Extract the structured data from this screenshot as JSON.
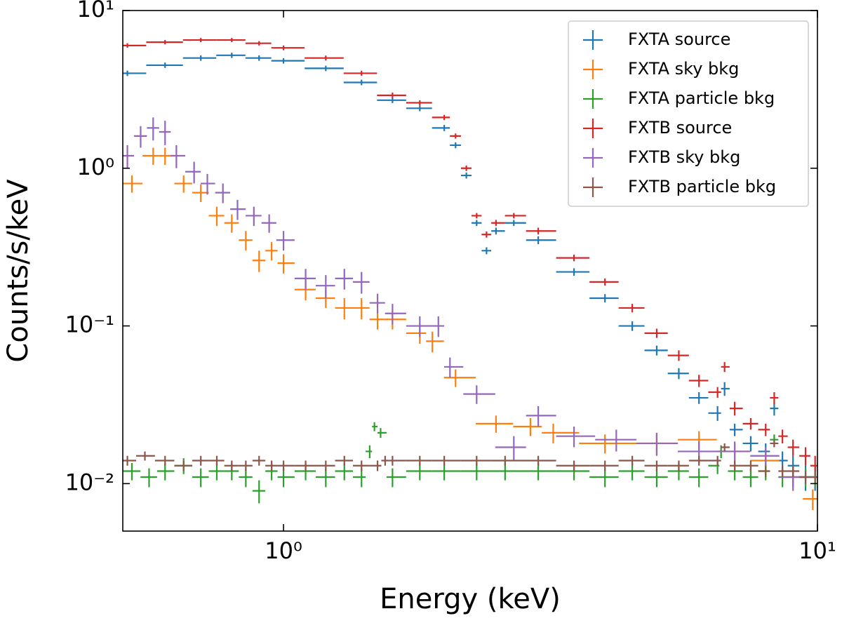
{
  "chart_data": {
    "type": "errorbar",
    "xlabel": "Energy (keV)",
    "ylabel": "Counts/s/keV",
    "xscale": "log",
    "yscale": "log",
    "xlim": [
      0.5,
      10
    ],
    "ylim": [
      0.005,
      10
    ],
    "xticks": [
      {
        "value": 1,
        "label": "10⁰"
      },
      {
        "value": 10,
        "label": "10¹"
      }
    ],
    "yticks": [
      {
        "value": 0.01,
        "label": "10⁻²"
      },
      {
        "value": 0.1,
        "label": "10⁻¹"
      },
      {
        "value": 1,
        "label": "10⁰"
      },
      {
        "value": 10,
        "label": "10¹"
      }
    ],
    "legend": "upper right",
    "series": [
      {
        "name": "FXTA source",
        "color": "#1f77b4",
        "x": [
          0.51,
          0.6,
          0.7,
          0.8,
          0.9,
          1.0,
          1.2,
          1.4,
          1.6,
          1.8,
          2.0,
          2.1,
          2.2,
          2.3,
          2.4,
          2.5,
          2.7,
          3.0,
          3.5,
          4.0,
          4.5,
          5.0,
          5.5,
          6.0,
          6.5,
          6.7,
          7.0,
          7.5,
          8.0,
          8.3,
          8.6,
          9.0,
          9.5,
          9.9
        ],
        "values": [
          4.0,
          4.5,
          5.0,
          5.2,
          5.0,
          4.8,
          4.3,
          3.5,
          2.7,
          2.4,
          1.8,
          1.4,
          0.9,
          0.45,
          0.3,
          0.4,
          0.45,
          0.35,
          0.22,
          0.15,
          0.1,
          0.07,
          0.05,
          0.035,
          0.028,
          0.04,
          0.022,
          0.018,
          0.016,
          0.03,
          0.014,
          0.013,
          0.011,
          0.011
        ],
        "errors": [
          0.16,
          0.18,
          0.2,
          0.2,
          0.2,
          0.19,
          0.17,
          0.14,
          0.11,
          0.1,
          0.08,
          0.06,
          0.04,
          0.02,
          0.015,
          0.02,
          0.02,
          0.02,
          0.012,
          0.009,
          0.007,
          0.005,
          0.004,
          0.003,
          0.003,
          0.004,
          0.002,
          0.002,
          0.002,
          0.003,
          0.002,
          0.002,
          0.002,
          0.002
        ]
      },
      {
        "name": "FXTA sky bkg",
        "color": "#ff7f0e",
        "x": [
          0.52,
          0.57,
          0.6,
          0.65,
          0.7,
          0.75,
          0.8,
          0.85,
          0.9,
          0.95,
          1.0,
          1.1,
          1.2,
          1.3,
          1.4,
          1.5,
          1.6,
          1.8,
          1.9,
          2.1,
          2.5,
          2.9,
          3.2,
          4.0,
          5.0,
          6.0,
          7.0,
          8.0,
          9.0,
          9.8
        ],
        "values": [
          0.8,
          1.2,
          1.2,
          0.8,
          0.7,
          0.5,
          0.45,
          0.35,
          0.26,
          0.3,
          0.25,
          0.17,
          0.15,
          0.13,
          0.13,
          0.11,
          0.11,
          0.09,
          0.08,
          0.047,
          0.024,
          0.023,
          0.021,
          0.018,
          0.018,
          0.019,
          0.016,
          0.014,
          0.011,
          0.008
        ],
        "errors": [
          0.1,
          0.15,
          0.15,
          0.1,
          0.09,
          0.07,
          0.06,
          0.05,
          0.04,
          0.04,
          0.035,
          0.025,
          0.02,
          0.02,
          0.02,
          0.015,
          0.015,
          0.013,
          0.012,
          0.006,
          0.003,
          0.003,
          0.003,
          0.0025,
          0.0025,
          0.0025,
          0.002,
          0.002,
          0.0015,
          0.0012
        ]
      },
      {
        "name": "FXTA particle bkg",
        "color": "#2ca02c",
        "x": [
          0.52,
          0.56,
          0.6,
          0.65,
          0.7,
          0.75,
          0.8,
          0.85,
          0.9,
          0.95,
          1.0,
          1.1,
          1.2,
          1.3,
          1.4,
          1.45,
          1.48,
          1.52,
          1.6,
          1.8,
          2.0,
          2.3,
          2.6,
          3.0,
          3.5,
          4.0,
          4.5,
          5.0,
          5.5,
          6.0,
          6.5,
          6.6,
          7.0,
          7.5,
          8.0,
          8.3,
          8.6,
          9.0,
          9.5,
          9.9
        ],
        "values": [
          0.012,
          0.011,
          0.012,
          0.013,
          0.011,
          0.012,
          0.012,
          0.011,
          0.009,
          0.012,
          0.011,
          0.012,
          0.011,
          0.012,
          0.011,
          0.016,
          0.023,
          0.021,
          0.011,
          0.012,
          0.012,
          0.012,
          0.012,
          0.012,
          0.012,
          0.011,
          0.012,
          0.011,
          0.012,
          0.011,
          0.013,
          0.016,
          0.012,
          0.011,
          0.012,
          0.019,
          0.011,
          0.011,
          0.011,
          0.011
        ],
        "errors": [
          0.0015,
          0.0015,
          0.0015,
          0.0015,
          0.0015,
          0.0015,
          0.0015,
          0.0015,
          0.0015,
          0.0015,
          0.0015,
          0.0015,
          0.0015,
          0.0015,
          0.0015,
          0.0015,
          0.0015,
          0.0015,
          0.0015,
          0.0015,
          0.0015,
          0.0015,
          0.0015,
          0.0015,
          0.0015,
          0.0015,
          0.0015,
          0.0015,
          0.0015,
          0.0015,
          0.0015,
          0.0015,
          0.0015,
          0.0015,
          0.0015,
          0.0015,
          0.0015,
          0.0015,
          0.0015,
          0.0015
        ]
      },
      {
        "name": "FXTB source",
        "color": "#d62728",
        "x": [
          0.51,
          0.6,
          0.7,
          0.8,
          0.9,
          1.0,
          1.2,
          1.4,
          1.6,
          1.8,
          2.0,
          2.1,
          2.2,
          2.3,
          2.4,
          2.5,
          2.7,
          3.0,
          3.5,
          4.0,
          4.5,
          5.0,
          5.5,
          6.0,
          6.5,
          6.7,
          7.0,
          7.5,
          8.0,
          8.3,
          8.6,
          9.0,
          9.5,
          9.9
        ],
        "values": [
          6.0,
          6.3,
          6.5,
          6.5,
          6.2,
          5.8,
          5.0,
          4.0,
          2.9,
          2.6,
          2.1,
          1.6,
          1.0,
          0.5,
          0.38,
          0.45,
          0.5,
          0.4,
          0.27,
          0.19,
          0.13,
          0.09,
          0.065,
          0.045,
          0.038,
          0.055,
          0.03,
          0.024,
          0.022,
          0.035,
          0.02,
          0.017,
          0.015,
          0.013
        ],
        "errors": [
          0.2,
          0.2,
          0.2,
          0.2,
          0.2,
          0.2,
          0.18,
          0.15,
          0.12,
          0.1,
          0.08,
          0.06,
          0.04,
          0.02,
          0.017,
          0.02,
          0.02,
          0.02,
          0.013,
          0.01,
          0.008,
          0.006,
          0.005,
          0.004,
          0.003,
          0.004,
          0.003,
          0.002,
          0.002,
          0.003,
          0.002,
          0.002,
          0.002,
          0.002
        ]
      },
      {
        "name": "FXTB sky bkg",
        "color": "#9467bd",
        "x": [
          0.51,
          0.54,
          0.57,
          0.6,
          0.63,
          0.68,
          0.72,
          0.77,
          0.82,
          0.88,
          0.94,
          1.0,
          1.1,
          1.2,
          1.3,
          1.4,
          1.5,
          1.6,
          1.8,
          1.95,
          2.05,
          2.3,
          2.7,
          3.0,
          3.5,
          4.2,
          5.0,
          6.0,
          7.0,
          8.0,
          9.0
        ],
        "values": [
          1.2,
          1.6,
          1.8,
          1.7,
          1.2,
          0.95,
          0.8,
          0.7,
          0.55,
          0.5,
          0.45,
          0.35,
          0.2,
          0.18,
          0.2,
          0.19,
          0.14,
          0.12,
          0.1,
          0.1,
          0.055,
          0.037,
          0.017,
          0.027,
          0.02,
          0.019,
          0.018,
          0.016,
          0.016,
          0.015,
          0.011
        ],
        "errors": [
          0.2,
          0.25,
          0.3,
          0.3,
          0.2,
          0.15,
          0.12,
          0.1,
          0.08,
          0.07,
          0.06,
          0.05,
          0.03,
          0.03,
          0.03,
          0.03,
          0.02,
          0.018,
          0.015,
          0.015,
          0.008,
          0.005,
          0.003,
          0.004,
          0.003,
          0.003,
          0.003,
          0.0025,
          0.0025,
          0.002,
          0.002
        ]
      },
      {
        "name": "FXTB particle bkg",
        "color": "#8c564b",
        "x": [
          0.51,
          0.55,
          0.6,
          0.65,
          0.7,
          0.75,
          0.8,
          0.85,
          0.9,
          0.95,
          1.0,
          1.1,
          1.2,
          1.3,
          1.4,
          1.5,
          1.55,
          1.6,
          1.8,
          2.0,
          2.3,
          2.6,
          3.0,
          3.5,
          4.0,
          4.5,
          5.0,
          5.5,
          6.0,
          6.5,
          6.7,
          7.0,
          7.5,
          8.0,
          8.3,
          8.6,
          9.0,
          9.5,
          9.9
        ],
        "values": [
          0.014,
          0.015,
          0.014,
          0.013,
          0.014,
          0.014,
          0.013,
          0.013,
          0.014,
          0.013,
          0.013,
          0.013,
          0.013,
          0.014,
          0.013,
          0.013,
          0.014,
          0.014,
          0.014,
          0.014,
          0.014,
          0.014,
          0.014,
          0.013,
          0.013,
          0.014,
          0.013,
          0.013,
          0.014,
          0.014,
          0.017,
          0.013,
          0.013,
          0.012,
          0.018,
          0.012,
          0.012,
          0.011,
          0.011
        ],
        "errors": [
          0.001,
          0.001,
          0.001,
          0.001,
          0.001,
          0.001,
          0.001,
          0.001,
          0.001,
          0.001,
          0.001,
          0.001,
          0.001,
          0.001,
          0.001,
          0.001,
          0.001,
          0.001,
          0.001,
          0.001,
          0.001,
          0.001,
          0.001,
          0.001,
          0.001,
          0.001,
          0.001,
          0.001,
          0.001,
          0.001,
          0.001,
          0.001,
          0.001,
          0.001,
          0.001,
          0.001,
          0.001,
          0.001,
          0.001
        ]
      }
    ]
  }
}
